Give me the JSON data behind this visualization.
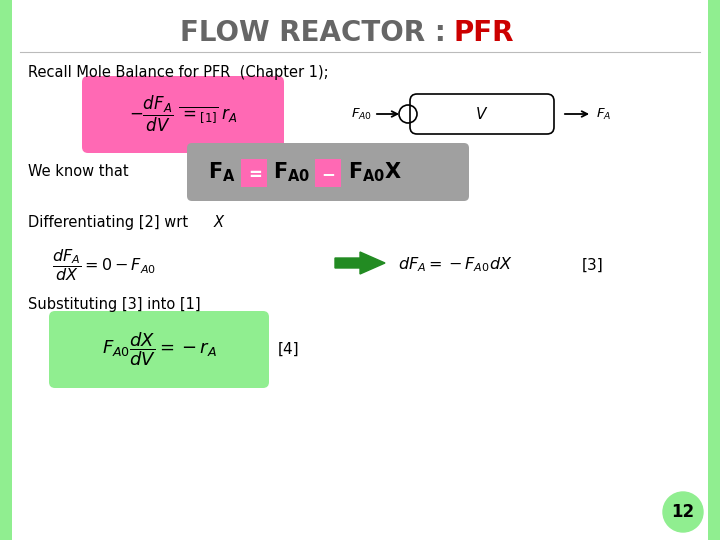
{
  "title_main": "FLOW REACTOR : ",
  "title_pfr": "PFR",
  "bg_color": "#ffffff",
  "border_color": "#90EE90",
  "slide_number": "12",
  "recall_text": "Recall Mole Balance for PFR  (Chapter 1);",
  "weknow_text": "We know that",
  "diff_text_1": "Differentiating [2] wrt ",
  "sub_text": "Substituting [3] into [1]",
  "label4": "[4]",
  "label3": "[3]",
  "box1_color": "#FF69B4",
  "gray_color": "#A0A0A0",
  "box3_color": "#90EE90",
  "arrow_green": "#228B22"
}
